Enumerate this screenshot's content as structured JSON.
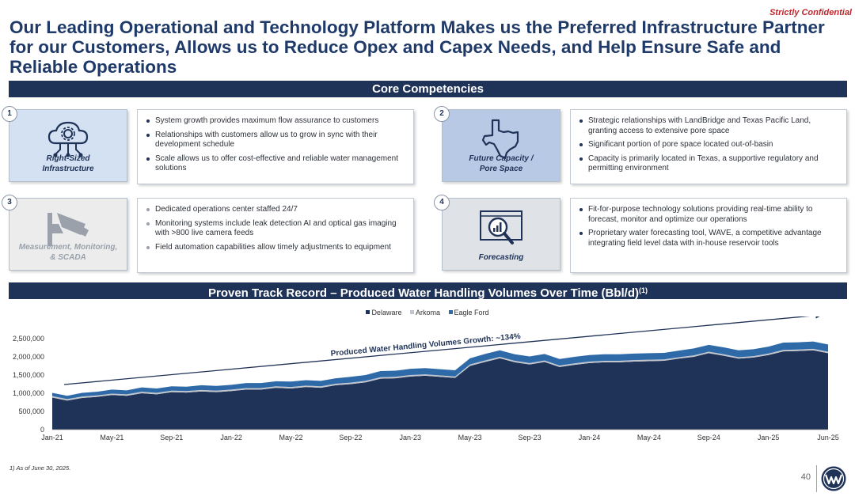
{
  "header": {
    "confidential": "Strictly Confidential",
    "title": "Our Leading Operational and Technology Platform Makes us the Preferred Infrastructure Partner for our Customers, Allows us to Reduce Opex and Capex Needs, and Help Ensure Safe and Reliable Operations"
  },
  "core": {
    "heading": "Core Competencies",
    "items": [
      {
        "number": "1",
        "label_line1": "Right-Sized",
        "label_line2": "Infrastructure",
        "icon": "cloud-gear-network-icon",
        "bullets": [
          "System growth provides maximum flow assurance to customers",
          "Relationships with customers allow us to grow in sync with their development schedule",
          "Scale allows us to offer cost-effective and reliable water management solutions"
        ]
      },
      {
        "number": "2",
        "label_line1": "Future Capacity /",
        "label_line2": "Pore Space",
        "icon": "texas-map-icon",
        "bullets": [
          "Strategic relationships with LandBridge and Texas Pacific Land, granting access to extensive pore space",
          "Significant portion of pore space located out-of-basin",
          "Capacity is primarily located in Texas, a supportive regulatory and permitting environment"
        ]
      },
      {
        "number": "3",
        "label_line1": "Measurement, Monitoring,",
        "label_line2": "& SCADA",
        "icon": "security-camera-icon",
        "bullets": [
          "Dedicated operations center staffed 24/7",
          "Monitoring systems include leak detection AI and optical gas imaging with >800 live camera feeds",
          "Field automation capabilities allow timely adjustments to equipment"
        ]
      },
      {
        "number": "4",
        "label_line1": "Forecasting",
        "label_line2": "",
        "icon": "analytics-magnifier-icon",
        "bullets": [
          "Fit-for-purpose technology solutions providing real-time ability to forecast, monitor and optimize our operations",
          "Proprietary water forecasting tool, WAVE, a competitive advantage integrating field level data with in-house reservoir tools"
        ]
      }
    ]
  },
  "track": {
    "heading": "Proven Track Record – Produced Water Handling Volumes Over Time (Bbl/d)",
    "footnote_marker": "(1)"
  },
  "chart_data": {
    "type": "area",
    "stacked": true,
    "series": [
      {
        "name": "Delaware",
        "color": "#1f3257",
        "values": [
          880000,
          800000,
          870000,
          900000,
          950000,
          930000,
          1000000,
          970000,
          1030000,
          1020000,
          1050000,
          1030000,
          1060000,
          1100000,
          1100000,
          1150000,
          1130000,
          1170000,
          1150000,
          1220000,
          1250000,
          1300000,
          1400000,
          1410000,
          1460000,
          1480000,
          1450000,
          1420000,
          1750000,
          1860000,
          1960000,
          1850000,
          1790000,
          1860000,
          1720000,
          1780000,
          1830000,
          1850000,
          1850000,
          1870000,
          1880000,
          1890000,
          1950000,
          2000000,
          2100000,
          2030000,
          1950000,
          1980000,
          2050000,
          2150000,
          2160000,
          2180000,
          2100000
        ]
      },
      {
        "name": "Arkoma",
        "color": "#c2c6cc",
        "values": [
          40000,
          40000,
          40000,
          40000,
          40000,
          40000,
          40000,
          40000,
          40000,
          40000,
          40000,
          40000,
          40000,
          40000,
          40000,
          40000,
          40000,
          40000,
          40000,
          40000,
          40000,
          40000,
          40000,
          40000,
          40000,
          40000,
          40000,
          40000,
          40000,
          40000,
          40000,
          40000,
          40000,
          40000,
          40000,
          40000,
          40000,
          40000,
          40000,
          40000,
          40000,
          40000,
          40000,
          40000,
          40000,
          40000,
          40000,
          40000,
          40000,
          40000,
          40000,
          40000,
          40000
        ]
      },
      {
        "name": "Eagle Ford",
        "color": "#2f6aa8",
        "values": [
          90000,
          90000,
          100000,
          100000,
          110000,
          110000,
          120000,
          120000,
          120000,
          120000,
          130000,
          130000,
          130000,
          140000,
          140000,
          140000,
          150000,
          150000,
          150000,
          150000,
          160000,
          160000,
          170000,
          170000,
          170000,
          170000,
          170000,
          170000,
          170000,
          180000,
          180000,
          180000,
          180000,
          180000,
          180000,
          180000,
          180000,
          180000,
          180000,
          180000,
          180000,
          180000,
          180000,
          190000,
          190000,
          190000,
          190000,
          190000,
          190000,
          200000,
          200000,
          200000,
          200000
        ]
      }
    ],
    "x_tick_labels": [
      "Jan-21",
      "May-21",
      "Sep-21",
      "Jan-22",
      "May-22",
      "Sep-22",
      "Jan-23",
      "May-23",
      "Sep-23",
      "Jan-24",
      "May-24",
      "Sep-24",
      "Jan-25",
      "Jun-25"
    ],
    "y_tick_labels": [
      "0",
      "500,000",
      "1,000,000",
      "1,500,000",
      "2,000,000",
      "2,500,000"
    ],
    "ylim": [
      0,
      2500000
    ],
    "annotation": "Produced Water Handling Volumes Growth: ~134%",
    "legend_position": "top-center"
  },
  "footer": {
    "footnote": "1)  As of June 30, 2025.",
    "page_number": "40"
  }
}
